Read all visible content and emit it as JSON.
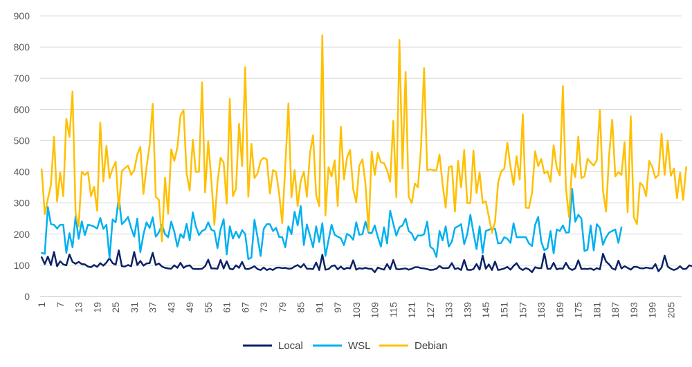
{
  "chart_data": {
    "type": "line",
    "title": "",
    "xlabel": "",
    "ylabel": "",
    "ylim": [
      0,
      900
    ],
    "yticks": [
      0,
      100,
      200,
      300,
      400,
      500,
      600,
      700,
      800,
      900
    ],
    "x_start": 1,
    "x_end": 208,
    "x_tick_labels": [
      "1",
      "7",
      "13",
      "19",
      "25",
      "31",
      "37",
      "43",
      "49",
      "55",
      "61",
      "67",
      "73",
      "79",
      "85",
      "91",
      "97",
      "103",
      "109",
      "115",
      "121",
      "127",
      "133",
      "139",
      "145",
      "151",
      "157",
      "163",
      "169",
      "175",
      "181",
      "187",
      "193",
      "199",
      "205"
    ],
    "grid": "horizontal",
    "legend_position": "bottom",
    "series": [
      {
        "name": "Local",
        "color": "#0b2265",
        "values": [
          126,
          104,
          128,
          101,
          143,
          97,
          113,
          103,
          100,
          135,
          111,
          105,
          111,
          104,
          103,
          96,
          94,
          101,
          95,
          107,
          99,
          109,
          123,
          107,
          102,
          148,
          97,
          96,
          101,
          97,
          143,
          101,
          114,
          99,
          106,
          107,
          140,
          101,
          106,
          96,
          92,
          90,
          89,
          100,
          92,
          108,
          92,
          98,
          100,
          89,
          88,
          88,
          89,
          97,
          118,
          90,
          90,
          89,
          117,
          90,
          113,
          89,
          87,
          100,
          92,
          111,
          89,
          88,
          92,
          97,
          88,
          85,
          93,
          85,
          89,
          85,
          92,
          93,
          91,
          92,
          89,
          90,
          96,
          101,
          93,
          104,
          89,
          89,
          88,
          109,
          85,
          134,
          86,
          88,
          97,
          100,
          87,
          96,
          87,
          92,
          90,
          116,
          86,
          91,
          89,
          92,
          89,
          89,
          78,
          93,
          89,
          86,
          104,
          87,
          117,
          88,
          87,
          89,
          90,
          86,
          89,
          94,
          94,
          91,
          90,
          88,
          85,
          86,
          89,
          98,
          91,
          91,
          92,
          107,
          88,
          91,
          85,
          117,
          86,
          85,
          88,
          104,
          86,
          131,
          89,
          103,
          85,
          112,
          85,
          87,
          90,
          95,
          86,
          98,
          107,
          91,
          85,
          91,
          87,
          78,
          94,
          91,
          91,
          138,
          89,
          89,
          108,
          87,
          90,
          89,
          108,
          91,
          85,
          90,
          116,
          88,
          89,
          88,
          90,
          85,
          91,
          87,
          137,
          112,
          103,
          90,
          86,
          115,
          90,
          97,
          92,
          86,
          95,
          95,
          91,
          90,
          93,
          91,
          90,
          104,
          81,
          93,
          131,
          96,
          89,
          85,
          89,
          97,
          88,
          89,
          100,
          97,
          97,
          99,
          90
        ]
      },
      {
        "name": "WSL",
        "color": "#00b0f0",
        "values": [
          140,
          137,
          287,
          232,
          230,
          218,
          230,
          230,
          140,
          203,
          158,
          258,
          185,
          241,
          197,
          230,
          228,
          224,
          218,
          252,
          217,
          230,
          123,
          247,
          238,
          318,
          232,
          242,
          255,
          220,
          192,
          250,
          142,
          199,
          238,
          220,
          254,
          192,
          206,
          230,
          200,
          190,
          240,
          208,
          160,
          200,
          188,
          233,
          180,
          270,
          224,
          197,
          210,
          215,
          238,
          214,
          210,
          155,
          215,
          248,
          135,
          225,
          186,
          208,
          188,
          213,
          200,
          120,
          125,
          246,
          190,
          130,
          217,
          232,
          232,
          210,
          220,
          191,
          190,
          158,
          225,
          200,
          272,
          228,
          290,
          165,
          231,
          195,
          158,
          225,
          175,
          235,
          130,
          180,
          230,
          198,
          192,
          187,
          165,
          201,
          195,
          182,
          238,
          198,
          200,
          240,
          205,
          203,
          228,
          191,
          160,
          222,
          170,
          275,
          234,
          195,
          222,
          228,
          250,
          210,
          202,
          180,
          196,
          195,
          200,
          240,
          160,
          152,
          127,
          210,
          180,
          225,
          160,
          176,
          220,
          225,
          232,
          168,
          200,
          262,
          204,
          152,
          225,
          140,
          210,
          214,
          218,
          217,
          170,
          172,
          190,
          185,
          172,
          235,
          190,
          190,
          190,
          190,
          170,
          162,
          230,
          255,
          175,
          148,
          155,
          210,
          138,
          215,
          210,
          228,
          205,
          206,
          345,
          240,
          262,
          250,
          146,
          150,
          228,
          148,
          232,
          220,
          166,
          190,
          205,
          210,
          215,
          172,
          222
        ]
      },
      {
        "name": "Debian",
        "color": "#ffc000",
        "values": [
          408,
          264,
          312,
          358,
          512,
          305,
          398,
          322,
          570,
          512,
          657,
          267,
          225,
          400,
          390,
          400,
          322,
          352,
          275,
          558,
          369,
          483,
          380,
          410,
          432,
          282,
          402,
          412,
          420,
          390,
          405,
          455,
          480,
          329,
          415,
          485,
          618,
          320,
          310,
          177,
          381,
          265,
          472,
          435,
          478,
          580,
          598,
          395,
          340,
          503,
          400,
          400,
          687,
          334,
          498,
          375,
          230,
          365,
          445,
          430,
          298,
          634,
          322,
          345,
          554,
          418,
          735,
          320,
          490,
          380,
          395,
          435,
          445,
          440,
          330,
          405,
          400,
          330,
          235,
          420,
          619,
          318,
          405,
          290,
          370,
          400,
          320,
          460,
          517,
          325,
          290,
          838,
          260,
          415,
          385,
          437,
          290,
          545,
          375,
          445,
          470,
          345,
          302,
          420,
          440,
          360,
          210,
          465,
          390,
          460,
          430,
          428,
          405,
          368,
          563,
          318,
          823,
          410,
          720,
          320,
          300,
          362,
          350,
          480,
          733,
          405,
          408,
          405,
          405,
          455,
          360,
          285,
          415,
          418,
          272,
          435,
          350,
          470,
          300,
          300,
          468,
          332,
          398,
          300,
          305,
          255,
          205,
          240,
          365,
          402,
          410,
          493,
          417,
          358,
          450,
          375,
          584,
          285,
          284,
          333,
          466,
          418,
          441,
          395,
          402,
          368,
          485,
          414,
          388,
          675,
          345,
          255,
          425,
          383,
          512,
          380,
          385,
          442,
          430,
          420,
          437,
          598,
          340,
          272,
          455,
          567,
          385,
          400,
          390,
          495,
          270,
          578,
          255,
          232,
          365,
          355,
          322,
          435,
          415,
          380,
          390,
          523,
          390,
          500,
          387,
          410,
          315,
          397,
          310,
          416
        ]
      }
    ]
  }
}
